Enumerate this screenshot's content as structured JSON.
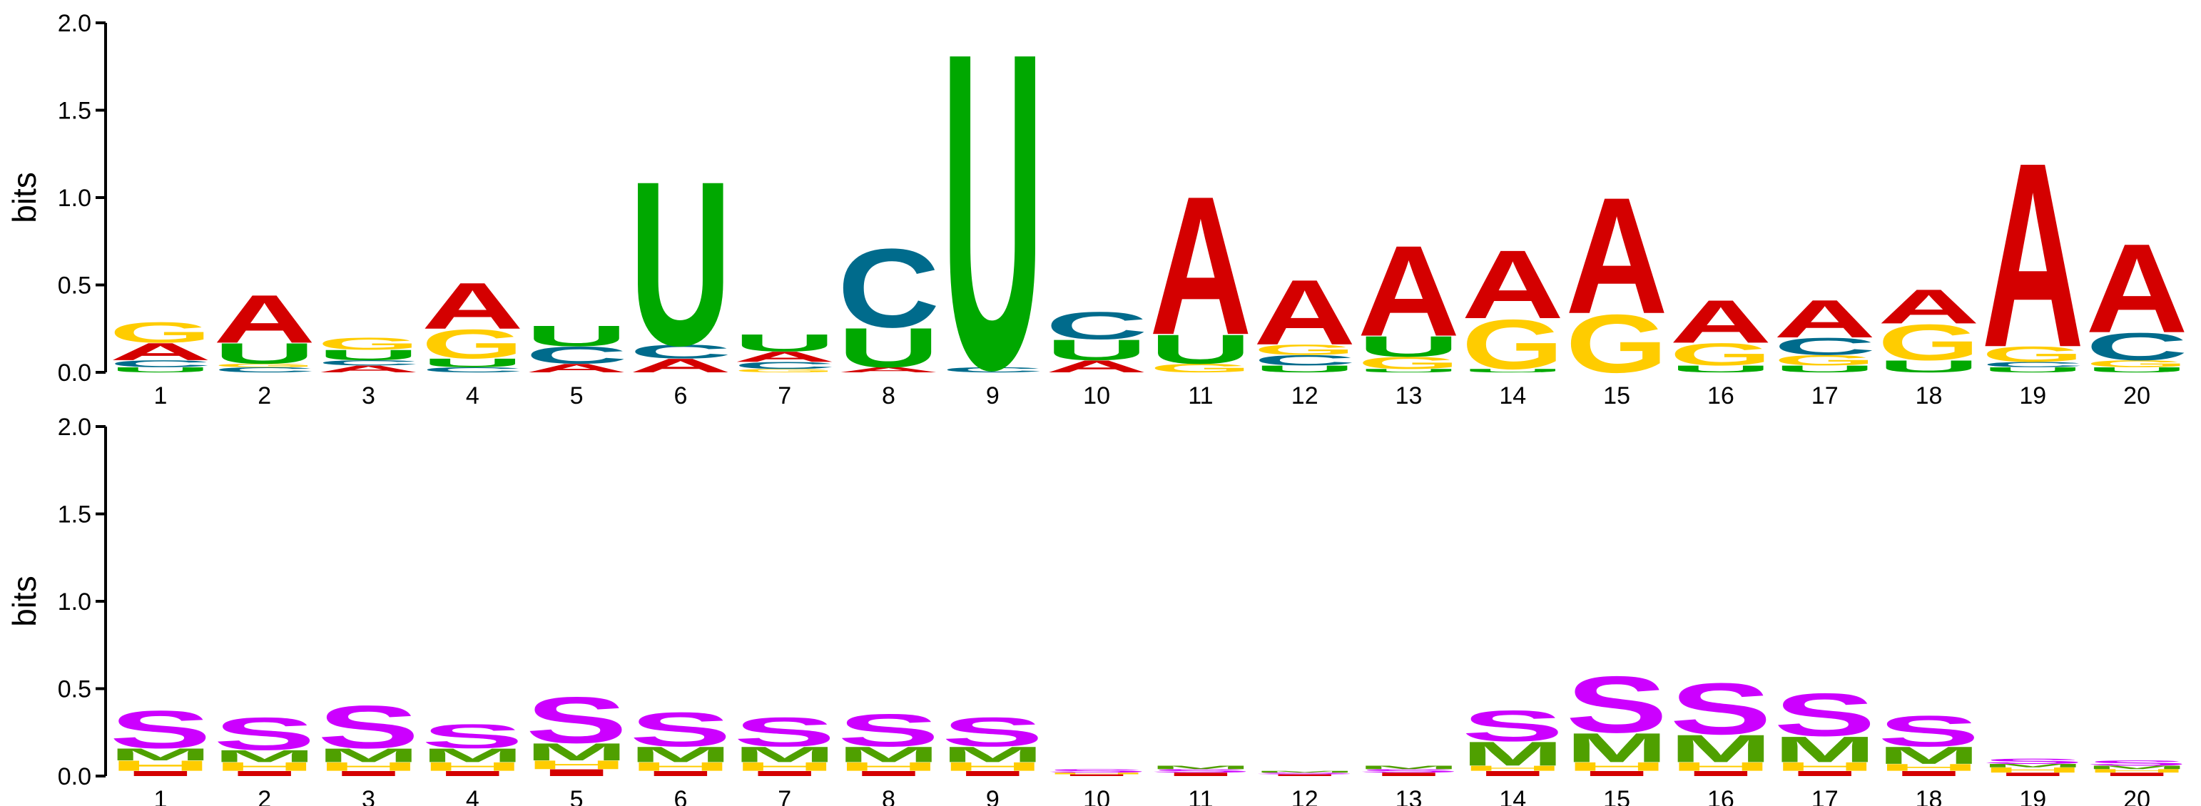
{
  "colors": {
    "A": "#d40000",
    "C": "#006b8c",
    "G": "#ffcc00",
    "U": "#00a800",
    "S": "#cc00ff",
    "M": "#4fa000",
    "H": "#ffcc00",
    "I": "#d40000"
  },
  "chart_data": [
    {
      "type": "sequence-logo",
      "ylabel": "bits",
      "ylim": [
        0,
        2.0
      ],
      "yticks": [
        "0.0",
        "0.5",
        "1.0",
        "1.5",
        "2.0"
      ],
      "positions": [
        "1",
        "2",
        "3",
        "4",
        "5",
        "6",
        "7",
        "8",
        "9",
        "10",
        "11",
        "12",
        "13",
        "14",
        "15",
        "16",
        "17",
        "18",
        "19",
        "20"
      ],
      "stacks": [
        [
          [
            "U",
            0.03
          ],
          [
            "C",
            0.04
          ],
          [
            "A",
            0.1
          ],
          [
            "G",
            0.12
          ]
        ],
        [
          [
            "C",
            0.03
          ],
          [
            "G",
            0.02
          ],
          [
            "U",
            0.12
          ],
          [
            "A",
            0.28
          ]
        ],
        [
          [
            "A",
            0.04
          ],
          [
            "C",
            0.03
          ],
          [
            "U",
            0.06
          ],
          [
            "G",
            0.07
          ]
        ],
        [
          [
            "C",
            0.03
          ],
          [
            "U",
            0.05
          ],
          [
            "G",
            0.17
          ],
          [
            "A",
            0.27
          ]
        ],
        [
          [
            "A",
            0.05
          ],
          [
            "C",
            0.1
          ],
          [
            "U",
            0.12
          ]
        ],
        [
          [
            "A",
            0.08
          ],
          [
            "C",
            0.08
          ],
          [
            "U",
            0.96
          ]
        ],
        [
          [
            "G",
            0.02
          ],
          [
            "C",
            0.04
          ],
          [
            "A",
            0.06
          ],
          [
            "U",
            0.1
          ]
        ],
        [
          [
            "A",
            0.03
          ],
          [
            "U",
            0.23
          ],
          [
            "C",
            0.46
          ]
        ],
        [
          [
            "C",
            0.03
          ],
          [
            "U",
            1.85
          ]
        ],
        [
          [
            "A",
            0.07
          ],
          [
            "U",
            0.12
          ],
          [
            "C",
            0.16
          ]
        ],
        [
          [
            "G",
            0.05
          ],
          [
            "U",
            0.17
          ],
          [
            "A",
            0.81
          ]
        ],
        [
          [
            "U",
            0.04
          ],
          [
            "C",
            0.06
          ],
          [
            "G",
            0.06
          ],
          [
            "A",
            0.38
          ]
        ],
        [
          [
            "U",
            0.02
          ],
          [
            "G",
            0.07
          ],
          [
            "U",
            0.12
          ],
          [
            "A",
            0.53
          ]
        ],
        [
          [
            "U",
            0.02
          ],
          [
            "G",
            0.29
          ],
          [
            "A",
            0.4
          ]
        ],
        [
          [
            "G",
            0.34
          ],
          [
            "A",
            0.68
          ]
        ],
        [
          [
            "U",
            0.04
          ],
          [
            "G",
            0.13
          ],
          [
            "A",
            0.25
          ]
        ],
        [
          [
            "U",
            0.04
          ],
          [
            "G",
            0.06
          ],
          [
            "C",
            0.1
          ],
          [
            "A",
            0.22
          ]
        ],
        [
          [
            "U",
            0.07
          ],
          [
            "G",
            0.21
          ],
          [
            "A",
            0.2
          ]
        ],
        [
          [
            "U",
            0.03
          ],
          [
            "C",
            0.03
          ],
          [
            "G",
            0.09
          ],
          [
            "A",
            1.08
          ]
        ],
        [
          [
            "U",
            0.03
          ],
          [
            "G",
            0.04
          ],
          [
            "C",
            0.16
          ],
          [
            "A",
            0.52
          ]
        ]
      ]
    },
    {
      "type": "sequence-logo",
      "ylabel": "bits",
      "ylim": [
        0,
        2.0
      ],
      "yticks": [
        "0.0",
        "0.5",
        "1.0",
        "1.5",
        "2.0"
      ],
      "positions": [
        "1",
        "2",
        "3",
        "4",
        "5",
        "6",
        "7",
        "8",
        "9",
        "10",
        "11",
        "12",
        "13",
        "14",
        "15",
        "16",
        "17",
        "18",
        "19",
        "20"
      ],
      "stacks": [
        [
          [
            "I",
            0.03
          ],
          [
            "H",
            0.06
          ],
          [
            "M",
            0.07
          ],
          [
            "S",
            0.22
          ]
        ],
        [
          [
            "I",
            0.03
          ],
          [
            "H",
            0.05
          ],
          [
            "M",
            0.07
          ],
          [
            "S",
            0.19
          ]
        ],
        [
          [
            "I",
            0.03
          ],
          [
            "H",
            0.05
          ],
          [
            "M",
            0.08
          ],
          [
            "S",
            0.25
          ]
        ],
        [
          [
            "I",
            0.03
          ],
          [
            "H",
            0.05
          ],
          [
            "M",
            0.08
          ],
          [
            "S",
            0.14
          ]
        ],
        [
          [
            "I",
            0.04
          ],
          [
            "H",
            0.05
          ],
          [
            "M",
            0.1
          ],
          [
            "S",
            0.27
          ]
        ],
        [
          [
            "I",
            0.03
          ],
          [
            "H",
            0.05
          ],
          [
            "M",
            0.09
          ],
          [
            "S",
            0.2
          ]
        ],
        [
          [
            "I",
            0.03
          ],
          [
            "H",
            0.05
          ],
          [
            "M",
            0.09
          ],
          [
            "S",
            0.17
          ]
        ],
        [
          [
            "I",
            0.03
          ],
          [
            "H",
            0.05
          ],
          [
            "M",
            0.09
          ],
          [
            "S",
            0.19
          ]
        ],
        [
          [
            "I",
            0.03
          ],
          [
            "H",
            0.05
          ],
          [
            "M",
            0.09
          ],
          [
            "S",
            0.17
          ]
        ],
        [
          [
            "I",
            0.01
          ],
          [
            "H",
            0.01
          ],
          [
            "S",
            0.02
          ]
        ],
        [
          [
            "I",
            0.02
          ],
          [
            "S",
            0.02
          ],
          [
            "M",
            0.02
          ]
        ],
        [
          [
            "I",
            0.01
          ],
          [
            "S",
            0.01
          ],
          [
            "M",
            0.01
          ]
        ],
        [
          [
            "I",
            0.02
          ],
          [
            "S",
            0.02
          ],
          [
            "M",
            0.02
          ]
        ],
        [
          [
            "I",
            0.03
          ],
          [
            "H",
            0.03
          ],
          [
            "M",
            0.14
          ],
          [
            "S",
            0.18
          ]
        ],
        [
          [
            "I",
            0.03
          ],
          [
            "H",
            0.05
          ],
          [
            "M",
            0.17
          ],
          [
            "S",
            0.33
          ]
        ],
        [
          [
            "I",
            0.03
          ],
          [
            "H",
            0.05
          ],
          [
            "M",
            0.16
          ],
          [
            "S",
            0.3
          ]
        ],
        [
          [
            "I",
            0.03
          ],
          [
            "H",
            0.05
          ],
          [
            "M",
            0.15
          ],
          [
            "S",
            0.25
          ]
        ],
        [
          [
            "I",
            0.03
          ],
          [
            "H",
            0.04
          ],
          [
            "M",
            0.1
          ],
          [
            "S",
            0.18
          ]
        ],
        [
          [
            "I",
            0.02
          ],
          [
            "H",
            0.03
          ],
          [
            "M",
            0.02
          ],
          [
            "S",
            0.03
          ]
        ],
        [
          [
            "I",
            0.02
          ],
          [
            "H",
            0.02
          ],
          [
            "M",
            0.02
          ],
          [
            "S",
            0.03
          ]
        ]
      ]
    }
  ]
}
